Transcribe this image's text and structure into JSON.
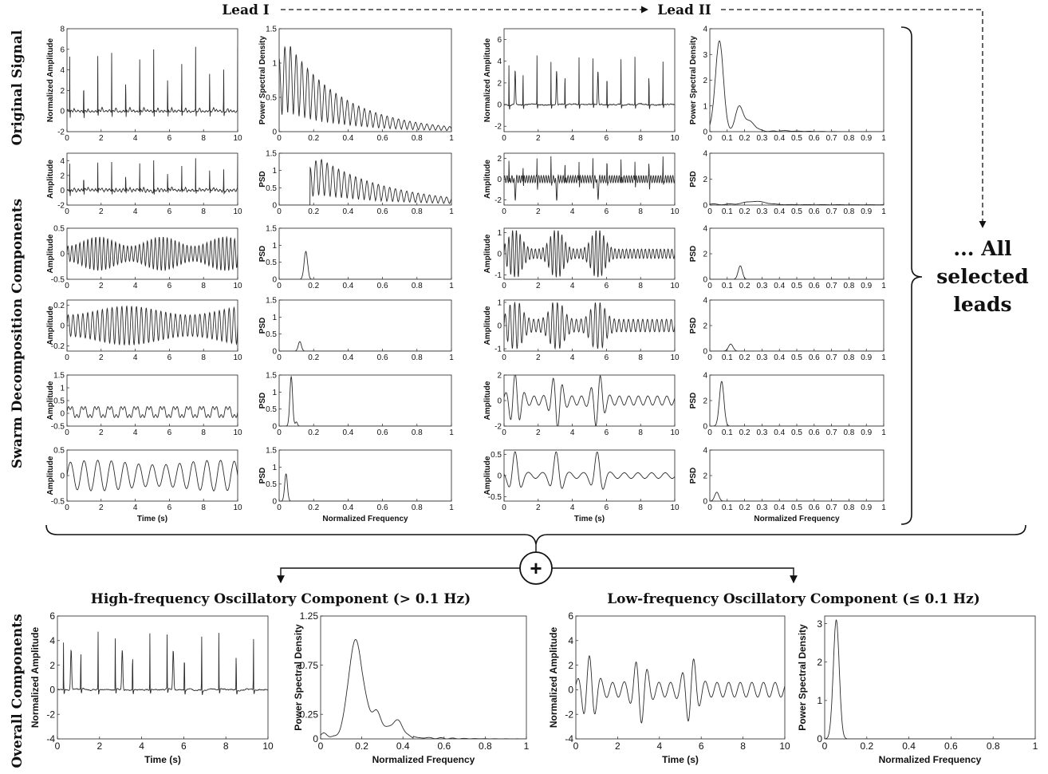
{
  "labels": {
    "lead1": "Lead I",
    "lead2": "Lead II",
    "row_original": "Original Signal",
    "row_swarm": "Swarm Decomposition Components",
    "row_overall": "Overall Components",
    "all_leads": [
      "... All",
      "selected",
      "leads"
    ],
    "plus": "+",
    "high_title": "High-frequency Oscillatory Component (> 0.1 Hz)",
    "low_title": "Low-frequency Oscillatory Component (≤ 0.1 Hz)"
  },
  "colors": {
    "line": "#2b2b2b",
    "axis": "#222222",
    "text": "#111111"
  },
  "chart_data": [
    {
      "id": "L1-orig-time",
      "type": "line",
      "ylabel": "Normalized Amplitude",
      "xlim": [
        0,
        10
      ],
      "ylim": [
        -2,
        8
      ],
      "xticks": [
        "0",
        "2",
        "4",
        "6",
        "8",
        "10"
      ],
      "yticks": [
        "-2",
        "0",
        "2",
        "4",
        "6",
        "8"
      ],
      "signal": "ecg",
      "params": {
        "amp": 6.2,
        "period": 0.82,
        "offset": 0.25,
        "noise": 0.25
      }
    },
    {
      "id": "L1-orig-psd",
      "type": "line",
      "ylabel": "Power Spectral Density",
      "xlim": [
        0,
        1
      ],
      "ylim": [
        0,
        1.5
      ],
      "xticks": [
        "0",
        "0.2",
        "0.4",
        "0.6",
        "0.8",
        "1"
      ],
      "yticks": [
        "0",
        "0.5",
        "1",
        "1.5"
      ],
      "signal": "comb",
      "params": {
        "start": 0.0,
        "peak": 1.38,
        "spacing": 0.033,
        "decay": 0.55,
        "width": 0.008
      }
    },
    {
      "id": "L2-orig-time",
      "type": "line",
      "ylabel": "Normalized Amplitude",
      "xlim": [
        0,
        10
      ],
      "ylim": [
        -2.5,
        7
      ],
      "xticks": [
        "0",
        "2",
        "4",
        "6",
        "8",
        "10"
      ],
      "yticks": [
        "-2",
        "0",
        "2",
        "4",
        "6"
      ],
      "signal": "ecg2",
      "params": {
        "amp": 5.2,
        "period": 0.82
      }
    },
    {
      "id": "L2-orig-psd",
      "type": "line",
      "ylabel": "Power Spectral Density",
      "xlim": [
        0,
        1
      ],
      "ylim": [
        0,
        4
      ],
      "xticks": [
        "0",
        "0.1",
        "0.2",
        "0.3",
        "0.4",
        "0.5",
        "0.6",
        "0.7",
        "0.8",
        "0.9",
        "1"
      ],
      "yticks": [
        "0",
        "1",
        "2",
        "3",
        "4"
      ],
      "signal": "psd2",
      "params": {}
    },
    {
      "id": "L1-c1-time",
      "type": "line",
      "ylabel": "Amplitude",
      "xlim": [
        0,
        10
      ],
      "ylim": [
        -2,
        5
      ],
      "xticks": [
        "0",
        "2",
        "4",
        "6",
        "8",
        "10"
      ],
      "yticks": [
        "-2",
        "0",
        "2",
        "4"
      ],
      "signal": "ecg",
      "params": {
        "amp": 4.3,
        "period": 0.82,
        "offset": 0.0,
        "noise": 0.45
      }
    },
    {
      "id": "L1-c1-psd",
      "type": "line",
      "ylabel": "PSD",
      "xlim": [
        0,
        1
      ],
      "ylim": [
        0,
        1.5
      ],
      "xticks": [
        "0",
        "0.2",
        "0.4",
        "0.6",
        "0.8",
        "1"
      ],
      "yticks": [
        "0",
        "0.5",
        "1",
        "1.5"
      ],
      "signal": "comb",
      "params": {
        "start": 0.18,
        "peak": 1.4,
        "spacing": 0.033,
        "decay": 0.7,
        "width": 0.008
      }
    },
    {
      "id": "L2-c1-time",
      "type": "line",
      "ylabel": "Amplitude",
      "xlim": [
        0,
        10
      ],
      "ylim": [
        -2.5,
        2.5
      ],
      "xticks": [
        "0",
        "2",
        "4",
        "6",
        "8",
        "10"
      ],
      "yticks": [
        "-2",
        "0",
        "2"
      ],
      "signal": "ecg2b",
      "params": {
        "amp": 2.1,
        "period": 0.82
      }
    },
    {
      "id": "L2-c1-psd",
      "type": "line",
      "ylabel": "PSD",
      "xlim": [
        0,
        1
      ],
      "ylim": [
        0,
        4
      ],
      "xticks": [
        "0",
        "0.1",
        "0.2",
        "0.3",
        "0.4",
        "0.5",
        "0.6",
        "0.7",
        "0.8",
        "0.9",
        "1"
      ],
      "yticks": [
        "0",
        "2",
        "4"
      ],
      "signal": "bump",
      "params": {
        "center": 0.26,
        "width": 0.06,
        "peak": 0.25,
        "wiggle": 0.08
      }
    },
    {
      "id": "L1-c2-time",
      "type": "line",
      "ylabel": "Amplitude",
      "xlim": [
        0,
        10
      ],
      "ylim": [
        -0.5,
        0.5
      ],
      "xticks": [
        "0",
        "2",
        "4",
        "6",
        "8",
        "10"
      ],
      "yticks": [
        "-0.5",
        "0",
        "0.5"
      ],
      "signal": "am",
      "params": {
        "amp": 0.33,
        "freq": 4.3,
        "modf": 0.27,
        "depth": 0.55
      }
    },
    {
      "id": "L1-c2-psd",
      "type": "line",
      "ylabel": "PSD",
      "xlim": [
        0,
        1
      ],
      "ylim": [
        0,
        1.5
      ],
      "xticks": [
        "0",
        "0.2",
        "0.4",
        "0.6",
        "0.8",
        "1"
      ],
      "yticks": [
        "0",
        "0.5",
        "1",
        "1.5"
      ],
      "signal": "peak",
      "params": {
        "center": 0.155,
        "width": 0.01,
        "peak": 0.82
      }
    },
    {
      "id": "L2-c2-time",
      "type": "line",
      "ylabel": "Amplitude",
      "xlim": [
        0,
        10
      ],
      "ylim": [
        -1.2,
        1.2
      ],
      "xticks": [
        "0",
        "2",
        "4",
        "6",
        "8",
        "10"
      ],
      "yticks": [
        "-1",
        "0",
        "1"
      ],
      "signal": "burst",
      "params": {
        "amp": 1.0,
        "freq": 4.5,
        "base": 0.22
      }
    },
    {
      "id": "L2-c2-psd",
      "type": "line",
      "ylabel": "PSD",
      "xlim": [
        0,
        1
      ],
      "ylim": [
        0,
        4
      ],
      "xticks": [
        "0",
        "0.1",
        "0.2",
        "0.3",
        "0.4",
        "0.5",
        "0.6",
        "0.7",
        "0.8",
        "0.9",
        "1"
      ],
      "yticks": [
        "0",
        "2",
        "4"
      ],
      "signal": "peak",
      "params": {
        "center": 0.175,
        "width": 0.012,
        "peak": 1.05
      }
    },
    {
      "id": "L1-c3-time",
      "type": "line",
      "ylabel": "Amplitude",
      "xlim": [
        0,
        10
      ],
      "ylim": [
        -0.25,
        0.25
      ],
      "xticks": [
        "0",
        "2",
        "4",
        "6",
        "8",
        "10"
      ],
      "yticks": [
        "-0.2",
        "0",
        "0.2"
      ],
      "signal": "am",
      "params": {
        "amp": 0.19,
        "freq": 3.5,
        "modf": 0.14,
        "depth": 0.45
      }
    },
    {
      "id": "L1-c3-psd",
      "type": "line",
      "ylabel": "PSD",
      "xlim": [
        0,
        1
      ],
      "ylim": [
        0,
        1.5
      ],
      "xticks": [
        "0",
        "0.2",
        "0.4",
        "0.6",
        "0.8",
        "1"
      ],
      "yticks": [
        "0",
        "0.5",
        "1",
        "1.5"
      ],
      "signal": "peak",
      "params": {
        "center": 0.12,
        "width": 0.009,
        "peak": 0.28
      }
    },
    {
      "id": "L2-c3-time",
      "type": "line",
      "ylabel": "Amplitude",
      "xlim": [
        0,
        10
      ],
      "ylim": [
        -1.1,
        1.1
      ],
      "xticks": [
        "0",
        "2",
        "4",
        "6",
        "8",
        "10"
      ],
      "yticks": [
        "-1",
        "0",
        "1"
      ],
      "signal": "burst",
      "params": {
        "amp": 0.9,
        "freq": 3.6,
        "base": 0.3
      }
    },
    {
      "id": "L2-c3-psd",
      "type": "line",
      "ylabel": "PSD",
      "xlim": [
        0,
        1
      ],
      "ylim": [
        0,
        4
      ],
      "xticks": [
        "0",
        "0.1",
        "0.2",
        "0.3",
        "0.4",
        "0.5",
        "0.6",
        "0.7",
        "0.8",
        "0.9",
        "1"
      ],
      "yticks": [
        "0",
        "2",
        "4"
      ],
      "signal": "peak",
      "params": {
        "center": 0.12,
        "width": 0.013,
        "peak": 0.55
      }
    },
    {
      "id": "L1-c4-time",
      "type": "line",
      "ylabel": "Amplitude",
      "xlim": [
        0,
        10
      ],
      "ylim": [
        -0.5,
        1.5
      ],
      "xticks": [
        "0",
        "2",
        "4",
        "6",
        "8",
        "10"
      ],
      "yticks": [
        "-0.5",
        "0",
        "0.5",
        "1",
        "1.5"
      ],
      "signal": "am2",
      "params": {
        "amp": 0.55,
        "freq": 1.3,
        "base": 0.5
      }
    },
    {
      "id": "L1-c4-psd",
      "type": "line",
      "ylabel": "PSD",
      "xlim": [
        0,
        1
      ],
      "ylim": [
        0,
        1.5
      ],
      "xticks": [
        "0",
        "0.2",
        "0.4",
        "0.6",
        "0.8",
        "1"
      ],
      "yticks": [
        "0",
        "0.5",
        "1",
        "1.5"
      ],
      "signal": "peak2",
      "params": {
        "center": 0.07,
        "width": 0.008,
        "peak": 1.45
      }
    },
    {
      "id": "L2-c4-time",
      "type": "line",
      "ylabel": "Amplitude",
      "xlim": [
        0,
        10
      ],
      "ylim": [
        -2,
        2
      ],
      "xticks": [
        "0",
        "2",
        "4",
        "6",
        "8",
        "10"
      ],
      "yticks": [
        "-2",
        "0",
        "2"
      ],
      "signal": "lowburst",
      "params": {
        "amp": 2.0,
        "freq": 1.8,
        "base": 0.18
      }
    },
    {
      "id": "L2-c4-psd",
      "type": "line",
      "ylabel": "PSD",
      "xlim": [
        0,
        1
      ],
      "ylim": [
        0,
        4
      ],
      "xticks": [
        "0",
        "0.1",
        "0.2",
        "0.3",
        "0.4",
        "0.5",
        "0.6",
        "0.7",
        "0.8",
        "0.9",
        "1"
      ],
      "yticks": [
        "0",
        "2",
        "4"
      ],
      "signal": "peak",
      "params": {
        "center": 0.068,
        "width": 0.013,
        "peak": 3.5
      }
    },
    {
      "id": "L1-c5-time",
      "type": "line",
      "ylabel": "Amplitude",
      "xlabel": "Time (s)",
      "xlim": [
        0,
        10
      ],
      "ylim": [
        -0.5,
        0.5
      ],
      "xticks": [
        "0",
        "2",
        "4",
        "6",
        "8",
        "10"
      ],
      "yticks": [
        "-0.5",
        "0",
        "0.5"
      ],
      "signal": "sine",
      "params": {
        "amp": 0.3,
        "freq": 1.25
      }
    },
    {
      "id": "L1-c5-psd",
      "type": "line",
      "ylabel": "PSD",
      "xlabel": "Normalized Frequency",
      "xlim": [
        0,
        1
      ],
      "ylim": [
        0,
        1.5
      ],
      "xticks": [
        "0",
        "0.2",
        "0.4",
        "0.6",
        "0.8",
        "1"
      ],
      "yticks": [
        "0",
        "0.5",
        "1",
        "1.5"
      ],
      "signal": "peak",
      "params": {
        "center": 0.04,
        "width": 0.008,
        "peak": 0.8
      }
    },
    {
      "id": "L2-c5-time",
      "type": "line",
      "ylabel": "Amplitude",
      "xlabel": "Time (s)",
      "xlim": [
        0,
        10
      ],
      "ylim": [
        -0.6,
        0.6
      ],
      "xticks": [
        "0",
        "2",
        "4",
        "6",
        "8",
        "10"
      ],
      "yticks": [
        "-0.5",
        "0",
        "0.5"
      ],
      "signal": "lowburst",
      "params": {
        "amp": 0.55,
        "freq": 1.25,
        "base": 0.12
      }
    },
    {
      "id": "L2-c5-psd",
      "type": "line",
      "ylabel": "PSD",
      "xlabel": "Normalized Frequency",
      "xlim": [
        0,
        1
      ],
      "ylim": [
        0,
        4
      ],
      "xticks": [
        "0",
        "0.1",
        "0.2",
        "0.3",
        "0.4",
        "0.5",
        "0.6",
        "0.7",
        "0.8",
        "0.9",
        "1"
      ],
      "yticks": [
        "0",
        "2",
        "4"
      ],
      "signal": "peak",
      "params": {
        "center": 0.04,
        "width": 0.012,
        "peak": 0.7
      }
    },
    {
      "id": "high-time",
      "type": "line",
      "ylabel": "Normalized Amplitude",
      "xlabel": "Time (s)",
      "xlim": [
        0,
        10
      ],
      "ylim": [
        -4,
        6
      ],
      "xticks": [
        "0",
        "2",
        "4",
        "6",
        "8",
        "10"
      ],
      "yticks": [
        "-4",
        "-2",
        "0",
        "2",
        "4",
        "6"
      ],
      "signal": "ecg2",
      "params": {
        "amp": 5.4,
        "period": 0.82
      }
    },
    {
      "id": "high-psd",
      "type": "line",
      "ylabel": "Power Spectral Density",
      "xlabel": "Normalized Frequency",
      "xlim": [
        0,
        1
      ],
      "ylim": [
        0,
        1.25
      ],
      "xticks": [
        "0",
        "0.2",
        "0.4",
        "0.6",
        "0.8",
        "1"
      ],
      "yticks": [
        "0",
        "0.25",
        "0.75",
        "1.25"
      ],
      "signal": "psdHigh",
      "params": {}
    },
    {
      "id": "low-time",
      "type": "line",
      "ylabel": "Normalized Amplitude",
      "xlabel": "Time (s)",
      "xlim": [
        0,
        10
      ],
      "ylim": [
        -4,
        6
      ],
      "xticks": [
        "0",
        "2",
        "4",
        "6",
        "8",
        "10"
      ],
      "yticks": [
        "-4",
        "-2",
        "0",
        "2",
        "4",
        "6"
      ],
      "signal": "lowburst",
      "params": {
        "amp": 2.4,
        "freq": 1.8,
        "base": 0.25
      }
    },
    {
      "id": "low-psd",
      "type": "line",
      "ylabel": "Power Spectral Density",
      "xlabel": "Normalized Frequency",
      "xlim": [
        0,
        1
      ],
      "ylim": [
        0,
        3.2
      ],
      "xticks": [
        "0",
        "0.2",
        "0.4",
        "0.6",
        "0.8",
        "1"
      ],
      "yticks": [
        "0",
        "1",
        "2",
        "3"
      ],
      "signal": "peak",
      "params": {
        "center": 0.055,
        "width": 0.014,
        "peak": 3.1
      }
    }
  ]
}
